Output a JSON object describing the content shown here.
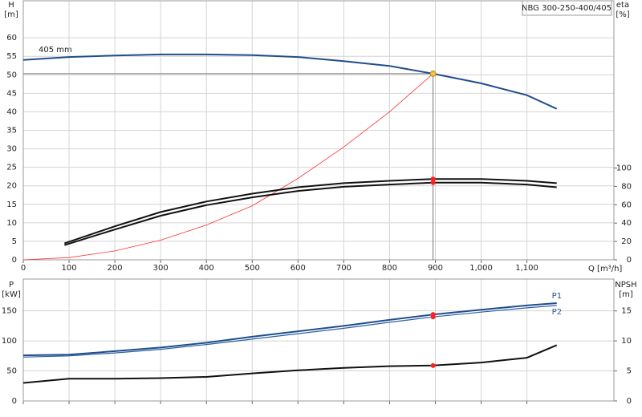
{
  "chart_data": [
    {
      "type": "line",
      "title": "NBG 300-250-400/405",
      "y_label": "H",
      "y_unit": "[m]",
      "y2_label": "eta",
      "y2_unit": "[%]",
      "x_label": "Q [m³/h]",
      "annotation": "405 mm",
      "xlim": [
        0,
        1290
      ],
      "ylim": [
        0,
        70
      ],
      "y2lim": [
        0,
        282
      ],
      "xticks": [
        0,
        100,
        200,
        300,
        400,
        500,
        600,
        700,
        800,
        900,
        {
          "value": 1000,
          "label": "1,000"
        },
        {
          "value": 1100,
          "label": "1,100"
        }
      ],
      "yticks": [
        0,
        5,
        10,
        15,
        20,
        25,
        30,
        35,
        40,
        45,
        50,
        55,
        60
      ],
      "y2ticks": [
        0,
        20,
        40,
        60,
        80,
        100
      ],
      "grid": true,
      "marker_x": 895,
      "marker_color": "#ff2020",
      "duty_point": {
        "x": 895,
        "y": 50.3,
        "color": "#f5c242",
        "line_color": "#777777"
      },
      "series": [
        {
          "color": "#1f4e8c",
          "x": [
            0,
            100,
            200,
            300,
            400,
            500,
            600,
            700,
            800,
            895,
            1000,
            1100,
            1165
          ],
          "values": [
            54.0,
            54.8,
            55.2,
            55.5,
            55.5,
            55.3,
            54.8,
            53.7,
            52.4,
            50.3,
            47.7,
            44.5,
            40.8
          ]
        },
        {
          "color": "#ff3030",
          "x": [
            0,
            100,
            200,
            300,
            400,
            500,
            600,
            700,
            800,
            895
          ],
          "values": [
            0,
            0.6,
            2.4,
            5.3,
            9.4,
            14.6,
            22.0,
            30.5,
            40.0,
            50.3
          ]
        },
        {
          "color": "#111111",
          "axis": "y2",
          "marker": true,
          "x": [
            90,
            200,
            300,
            400,
            500,
            600,
            700,
            800,
            895,
            1000,
            1100,
            1165
          ],
          "values": [
            18,
            36.5,
            52,
            63.5,
            72,
            79,
            83.5,
            86,
            88,
            88,
            86,
            83.5
          ]
        },
        {
          "color": "#111111",
          "axis": "y2",
          "marker": true,
          "x": [
            90,
            200,
            300,
            400,
            500,
            600,
            700,
            800,
            895,
            1000,
            1100,
            1165
          ],
          "values": [
            16,
            33,
            48,
            59.5,
            68,
            75,
            79.5,
            82,
            84,
            84,
            82,
            79
          ]
        }
      ]
    },
    {
      "type": "line",
      "y_label": "P",
      "y_unit": "[kW]",
      "y2_label": "NPSH",
      "y2_unit": "[m]",
      "xlim": [
        0,
        1290
      ],
      "ylim": [
        0,
        203
      ],
      "y2lim": [
        0,
        20.3
      ],
      "yticks": [
        0,
        50,
        100,
        150
      ],
      "y2ticks": [
        0,
        5,
        10,
        15
      ],
      "grid": true,
      "marker_x": 895,
      "marker_color": "#ff2020",
      "series": [
        {
          "name": "P1",
          "color": "#1f4e8c",
          "marker": true,
          "x": [
            0,
            100,
            200,
            300,
            400,
            500,
            600,
            700,
            800,
            895,
            1000,
            1100,
            1165
          ],
          "values": [
            76,
            77,
            83,
            89,
            97,
            107,
            116,
            125,
            135,
            144,
            152,
            159,
            163
          ]
        },
        {
          "name": "P2",
          "color": "#2d5fa0",
          "marker": true,
          "x": [
            0,
            100,
            200,
            300,
            400,
            500,
            600,
            700,
            800,
            895,
            1000,
            1100,
            1165
          ],
          "values": [
            73,
            75,
            80,
            86,
            94,
            103,
            112,
            121,
            131,
            140,
            148,
            155,
            159
          ]
        },
        {
          "color": "#111111",
          "axis": "y2",
          "marker": true,
          "x": [
            0,
            100,
            200,
            300,
            400,
            500,
            600,
            700,
            800,
            895,
            1000,
            1100,
            1165
          ],
          "values": [
            3.0,
            3.7,
            3.7,
            3.8,
            4.0,
            4.6,
            5.1,
            5.5,
            5.8,
            5.9,
            6.4,
            7.2,
            9.3
          ]
        }
      ]
    }
  ]
}
